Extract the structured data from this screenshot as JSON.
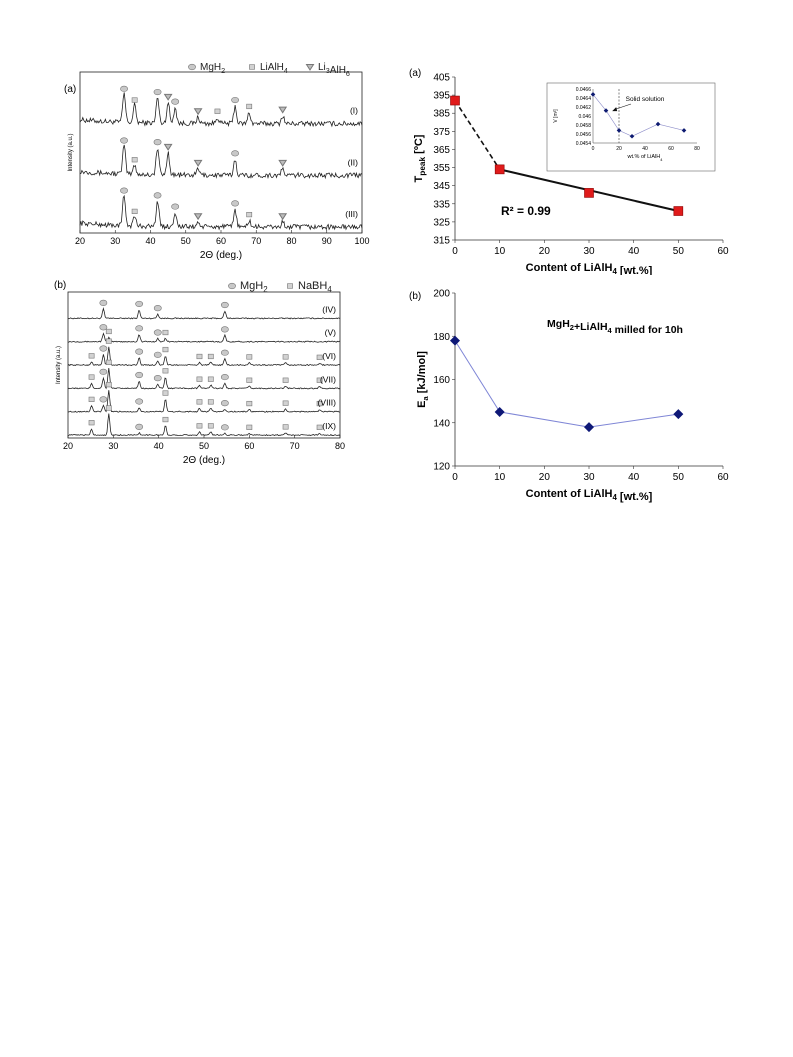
{
  "chart_data": [
    {
      "panel_label": "(a)",
      "type": "line",
      "subtype": "xrd-diffraction-pattern",
      "title": "",
      "xlabel": "2Θ (deg.)",
      "ylabel": "Intensity (a.u.)",
      "xlim": [
        20,
        100
      ],
      "xticks": [
        "20",
        "30",
        "40",
        "50",
        "60",
        "70",
        "80",
        "90",
        "100"
      ],
      "legend": [
        {
          "marker": "ellipse",
          "label": "MgH2"
        },
        {
          "marker": "square",
          "label": "LiAlH4"
        },
        {
          "marker": "triangle",
          "label": "Li3AlH6"
        }
      ],
      "legend_position": "top",
      "series": [
        {
          "name": "(I)",
          "peaks": [
            {
              "x": 32.5,
              "h": 0.9,
              "m": "ellipse"
            },
            {
              "x": 35.5,
              "h": 0.55,
              "m": "square"
            },
            {
              "x": 42,
              "h": 0.8,
              "m": "ellipse"
            },
            {
              "x": 45,
              "h": 0.65,
              "m": "triangle"
            },
            {
              "x": 47,
              "h": 0.5,
              "m": "ellipse"
            },
            {
              "x": 53.5,
              "h": 0.2,
              "m": "triangle"
            },
            {
              "x": 59,
              "h": 0.2,
              "m": "square"
            },
            {
              "x": 64,
              "h": 0.55,
              "m": "ellipse"
            },
            {
              "x": 68,
              "h": 0.35,
              "m": "square"
            },
            {
              "x": 77.5,
              "h": 0.25,
              "m": "triangle"
            }
          ]
        },
        {
          "name": "(II)",
          "peaks": [
            {
              "x": 32.5,
              "h": 0.9,
              "m": "ellipse"
            },
            {
              "x": 35.5,
              "h": 0.3,
              "m": "square"
            },
            {
              "x": 42,
              "h": 0.85,
              "m": "ellipse"
            },
            {
              "x": 45,
              "h": 0.7,
              "m": "triangle"
            },
            {
              "x": 53.5,
              "h": 0.2,
              "m": "triangle"
            },
            {
              "x": 64,
              "h": 0.5,
              "m": "ellipse"
            },
            {
              "x": 77.5,
              "h": 0.2,
              "m": "triangle"
            }
          ]
        },
        {
          "name": "(III)",
          "peaks": [
            {
              "x": 32.5,
              "h": 0.95,
              "m": "ellipse"
            },
            {
              "x": 35.5,
              "h": 0.3,
              "m": "square"
            },
            {
              "x": 42,
              "h": 0.8,
              "m": "ellipse"
            },
            {
              "x": 47,
              "h": 0.45,
              "m": "ellipse"
            },
            {
              "x": 53.5,
              "h": 0.15,
              "m": "triangle"
            },
            {
              "x": 64,
              "h": 0.55,
              "m": "ellipse"
            },
            {
              "x": 68,
              "h": 0.2,
              "m": "square"
            },
            {
              "x": 77.5,
              "h": 0.15,
              "m": "triangle"
            }
          ]
        }
      ]
    },
    {
      "panel_label": "(b)",
      "type": "line",
      "subtype": "xrd-diffraction-pattern",
      "title": "",
      "xlabel": "2Θ (deg.)",
      "ylabel": "Intensity (a.u.)",
      "xlim": [
        20,
        80
      ],
      "xticks": [
        "20",
        "30",
        "40",
        "50",
        "60",
        "70",
        "80"
      ],
      "legend": [
        {
          "marker": "ellipse",
          "label": "MgH2"
        },
        {
          "marker": "square",
          "label": "NaBH4"
        }
      ],
      "legend_position": "top",
      "series": [
        {
          "name": "(IV)",
          "peaks": [
            {
              "x": 27.8,
              "h": 0.45,
              "m": "ellipse"
            },
            {
              "x": 35.7,
              "h": 0.4,
              "m": "ellipse"
            },
            {
              "x": 39.8,
              "h": 0.2,
              "m": "ellipse"
            },
            {
              "x": 54.6,
              "h": 0.35,
              "m": "ellipse"
            }
          ]
        },
        {
          "name": "(V)",
          "peaks": [
            {
              "x": 27.8,
              "h": 0.4,
              "m": "ellipse"
            },
            {
              "x": 29,
              "h": 0.2,
              "m": "square"
            },
            {
              "x": 35.7,
              "h": 0.35,
              "m": "ellipse"
            },
            {
              "x": 39.8,
              "h": 0.15,
              "m": "ellipse"
            },
            {
              "x": 41.5,
              "h": 0.15,
              "m": "square"
            },
            {
              "x": 54.6,
              "h": 0.3,
              "m": "ellipse"
            }
          ]
        },
        {
          "name": "(VI)",
          "peaks": [
            {
              "x": 25.2,
              "h": 0.15,
              "m": "square"
            },
            {
              "x": 27.8,
              "h": 0.5,
              "m": "ellipse"
            },
            {
              "x": 29,
              "h": 0.85,
              "m": "square"
            },
            {
              "x": 35.7,
              "h": 0.35,
              "m": "ellipse"
            },
            {
              "x": 39.8,
              "h": 0.2,
              "m": "ellipse"
            },
            {
              "x": 41.5,
              "h": 0.45,
              "m": "square"
            },
            {
              "x": 49,
              "h": 0.12,
              "m": "square"
            },
            {
              "x": 51.5,
              "h": 0.12,
              "m": "square"
            },
            {
              "x": 54.6,
              "h": 0.3,
              "m": "ellipse"
            },
            {
              "x": 60,
              "h": 0.1,
              "m": "square"
            },
            {
              "x": 68,
              "h": 0.1,
              "m": "square"
            },
            {
              "x": 75.5,
              "h": 0.08,
              "m": "square"
            }
          ]
        },
        {
          "name": "(VII)",
          "peaks": [
            {
              "x": 25.2,
              "h": 0.25,
              "m": "square"
            },
            {
              "x": 27.8,
              "h": 0.5,
              "m": "ellipse"
            },
            {
              "x": 29,
              "h": 0.95,
              "m": "square"
            },
            {
              "x": 35.7,
              "h": 0.35,
              "m": "ellipse"
            },
            {
              "x": 39.8,
              "h": 0.2,
              "m": "ellipse"
            },
            {
              "x": 41.5,
              "h": 0.55,
              "m": "square"
            },
            {
              "x": 49,
              "h": 0.15,
              "m": "square"
            },
            {
              "x": 51.5,
              "h": 0.15,
              "m": "square"
            },
            {
              "x": 54.6,
              "h": 0.25,
              "m": "ellipse"
            },
            {
              "x": 60,
              "h": 0.1,
              "m": "square"
            },
            {
              "x": 68,
              "h": 0.1,
              "m": "square"
            },
            {
              "x": 75.5,
              "h": 0.1,
              "m": "square"
            }
          ]
        },
        {
          "name": "(VIII)",
          "peaks": [
            {
              "x": 25.2,
              "h": 0.3,
              "m": "square"
            },
            {
              "x": 27.8,
              "h": 0.3,
              "m": "ellipse"
            },
            {
              "x": 29,
              "h": 1.0,
              "m": "square"
            },
            {
              "x": 35.7,
              "h": 0.2,
              "m": "ellipse"
            },
            {
              "x": 41.5,
              "h": 0.6,
              "m": "square"
            },
            {
              "x": 49,
              "h": 0.18,
              "m": "square"
            },
            {
              "x": 51.5,
              "h": 0.18,
              "m": "square"
            },
            {
              "x": 54.6,
              "h": 0.12,
              "m": "ellipse"
            },
            {
              "x": 60,
              "h": 0.1,
              "m": "square"
            },
            {
              "x": 68,
              "h": 0.12,
              "m": "square"
            },
            {
              "x": 75.5,
              "h": 0.1,
              "m": "square"
            }
          ]
        },
        {
          "name": "(IX)",
          "peaks": [
            {
              "x": 25.2,
              "h": 0.3,
              "m": "square"
            },
            {
              "x": 29,
              "h": 1.0,
              "m": "square"
            },
            {
              "x": 35.7,
              "h": 0.1,
              "m": "ellipse"
            },
            {
              "x": 41.5,
              "h": 0.45,
              "m": "square"
            },
            {
              "x": 49,
              "h": 0.15,
              "m": "square"
            },
            {
              "x": 51.5,
              "h": 0.15,
              "m": "square"
            },
            {
              "x": 54.6,
              "h": 0.08,
              "m": "ellipse"
            },
            {
              "x": 60,
              "h": 0.08,
              "m": "square"
            },
            {
              "x": 68,
              "h": 0.1,
              "m": "square"
            },
            {
              "x": 75.5,
              "h": 0.08,
              "m": "square"
            }
          ]
        }
      ]
    },
    {
      "panel_label": "(a)",
      "type": "scatter",
      "title": "",
      "xlabel": "Content of LiAlH4 [wt.%]",
      "ylabel": "T peak [ºC]",
      "xlim": [
        0,
        60
      ],
      "ylim": [
        315,
        405
      ],
      "xticks": [
        "0",
        "10",
        "20",
        "30",
        "40",
        "50",
        "60"
      ],
      "yticks": [
        "315",
        "325",
        "335",
        "345",
        "355",
        "365",
        "375",
        "385",
        "395",
        "405"
      ],
      "x": [
        0,
        10,
        30,
        50
      ],
      "y": [
        392,
        354,
        341,
        331
      ],
      "fit_line": {
        "x": [
          10,
          50
        ],
        "y": [
          354,
          331
        ]
      },
      "dashed_segment": {
        "x": [
          0,
          10
        ],
        "y": [
          392,
          354
        ]
      },
      "annotation": "R² = 0.99",
      "inset": {
        "type": "line",
        "xlabel": "wt.% of LiAlH4",
        "ylabel": "V [m³]",
        "xlim": [
          0,
          80
        ],
        "ylim": [
          0.0454,
          0.0466
        ],
        "xticks": [
          "0",
          "20",
          "40",
          "60",
          "80"
        ],
        "yticks": [
          "0.0454",
          "0.0456",
          "0.0458",
          "0.046",
          "0.0462",
          "0.0464",
          "0.0466"
        ],
        "x": [
          0,
          10,
          20,
          30,
          50,
          70
        ],
        "y": [
          0.04648,
          0.04612,
          0.04568,
          0.04555,
          0.04582,
          0.04568
        ],
        "vline_x": 20,
        "annotation": "Solid solution"
      }
    },
    {
      "panel_label": "(b)",
      "type": "line",
      "title": "MgH2+LiAlH4 milled for 10h",
      "xlabel": "Content of LiAlH4 [wt.%]",
      "ylabel": "Ea [kJ/mol]",
      "xlim": [
        0,
        60
      ],
      "ylim": [
        120,
        200
      ],
      "xticks": [
        "0",
        "10",
        "20",
        "30",
        "40",
        "50",
        "60"
      ],
      "yticks": [
        "120",
        "140",
        "160",
        "180",
        "200"
      ],
      "x": [
        0,
        10,
        30,
        50
      ],
      "y": [
        178,
        145,
        138,
        144
      ]
    }
  ]
}
